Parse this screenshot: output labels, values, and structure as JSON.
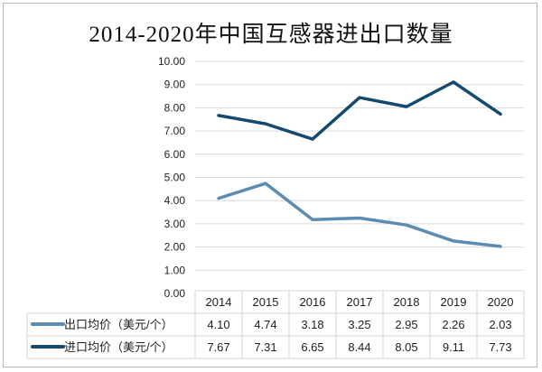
{
  "chart_data": {
    "type": "line",
    "title": "2014-2020年中国互感器进出口数量",
    "categories": [
      "2014",
      "2015",
      "2016",
      "2017",
      "2018",
      "2019",
      "2020"
    ],
    "series": [
      {
        "name": "出口均价（美元/个）",
        "values": [
          4.1,
          4.74,
          3.18,
          3.25,
          2.95,
          2.26,
          2.03
        ],
        "color": "#5b8db0"
      },
      {
        "name": "进口均价（美元/个）",
        "values": [
          7.67,
          7.31,
          6.65,
          8.44,
          8.05,
          9.11,
          7.73
        ],
        "color": "#144a6e"
      }
    ],
    "y_ticks": [
      "0.00",
      "1.00",
      "2.00",
      "3.00",
      "4.00",
      "5.00",
      "6.00",
      "7.00",
      "8.00",
      "9.00",
      "10.00"
    ],
    "ylim": [
      0,
      10
    ],
    "grid": true,
    "legend": "data-table"
  }
}
